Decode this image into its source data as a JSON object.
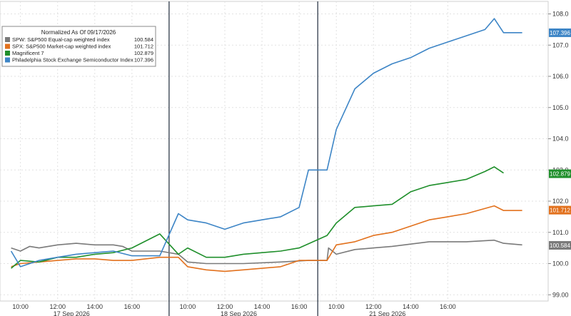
{
  "chart_data": {
    "type": "line",
    "legend": {
      "title": "Normalized As Of 09/17/2026",
      "placement": "top-left"
    },
    "y_axis": {
      "position": "right",
      "ylim": [
        98.8,
        108.4
      ],
      "ticks": [
        "99.00",
        "100.0",
        "101.0",
        "102.0",
        "103.0",
        "104.0",
        "105.0",
        "106.0",
        "107.0",
        "108.0"
      ]
    },
    "x_axis": {
      "sessions": [
        {
          "date_label": "17 Sep 2026",
          "ticks": [
            "10:00",
            "12:00",
            "14:00",
            "16:00"
          ]
        },
        {
          "date_label": "18 Sep 2026",
          "ticks": [
            "10:00",
            "12:00",
            "14:00",
            "16:00"
          ]
        },
        {
          "date_label": "21 Sep 2026",
          "ticks": [
            "10:00",
            "12:00",
            "14:00",
            "16:00"
          ]
        }
      ]
    },
    "grid": true,
    "series": [
      {
        "name": "SPW: S&P500 Equal-cap weighted index",
        "last_value": "100.584",
        "color": "#7a7a7a",
        "points": [
          [
            9.5,
            100.5
          ],
          [
            10.0,
            100.4
          ],
          [
            10.5,
            100.55
          ],
          [
            11.0,
            100.5
          ],
          [
            12.0,
            100.6
          ],
          [
            13.0,
            100.65
          ],
          [
            14.0,
            100.6
          ],
          [
            15.0,
            100.6
          ],
          [
            15.5,
            100.55
          ],
          [
            16.0,
            100.4
          ],
          [
            17.5,
            100.4
          ],
          [
            18.5,
            100.3
          ],
          [
            19.0,
            100.05
          ],
          [
            20.0,
            100.0
          ],
          [
            22.0,
            100.0
          ],
          [
            24.0,
            100.05
          ],
          [
            25.5,
            100.1
          ],
          [
            26.5,
            100.1
          ],
          [
            26.58,
            100.5
          ],
          [
            27.0,
            100.3
          ],
          [
            28.0,
            100.45
          ],
          [
            29.0,
            100.5
          ],
          [
            30.0,
            100.55
          ],
          [
            32.0,
            100.7
          ],
          [
            34.0,
            100.7
          ],
          [
            35.5,
            100.75
          ],
          [
            36.0,
            100.65
          ],
          [
            37.0,
            100.6
          ]
        ]
      },
      {
        "name": "SPX: S&P500 Market-cap weighted index",
        "last_value": "101.712",
        "color": "#e2711d",
        "points": [
          [
            9.5,
            99.9
          ],
          [
            10.0,
            100.0
          ],
          [
            11.0,
            100.05
          ],
          [
            12.0,
            100.1
          ],
          [
            13.0,
            100.15
          ],
          [
            14.0,
            100.15
          ],
          [
            15.0,
            100.1
          ],
          [
            16.0,
            100.1
          ],
          [
            17.5,
            100.2
          ],
          [
            18.5,
            100.2
          ],
          [
            19.0,
            99.9
          ],
          [
            20.0,
            99.8
          ],
          [
            21.0,
            99.75
          ],
          [
            22.0,
            99.8
          ],
          [
            24.0,
            99.9
          ],
          [
            25.0,
            100.1
          ],
          [
            26.5,
            100.1
          ],
          [
            27.0,
            100.6
          ],
          [
            28.0,
            100.7
          ],
          [
            29.0,
            100.9
          ],
          [
            30.0,
            101.0
          ],
          [
            32.0,
            101.4
          ],
          [
            33.0,
            101.5
          ],
          [
            34.0,
            101.6
          ],
          [
            35.5,
            101.85
          ],
          [
            36.0,
            101.7
          ],
          [
            37.0,
            101.7
          ]
        ]
      },
      {
        "name": "Magnificent 7",
        "last_value": "102.879",
        "color": "#1f8f2b",
        "points": [
          [
            9.5,
            99.85
          ],
          [
            10.0,
            100.1
          ],
          [
            11.0,
            100.05
          ],
          [
            12.0,
            100.2
          ],
          [
            13.0,
            100.2
          ],
          [
            14.0,
            100.3
          ],
          [
            15.0,
            100.35
          ],
          [
            16.0,
            100.5
          ],
          [
            17.5,
            100.95
          ],
          [
            18.5,
            100.3
          ],
          [
            19.0,
            100.5
          ],
          [
            20.0,
            100.2
          ],
          [
            21.0,
            100.2
          ],
          [
            22.0,
            100.3
          ],
          [
            24.0,
            100.4
          ],
          [
            25.0,
            100.5
          ],
          [
            26.5,
            100.9
          ],
          [
            27.0,
            101.3
          ],
          [
            28.0,
            101.8
          ],
          [
            29.0,
            101.85
          ],
          [
            30.0,
            101.9
          ],
          [
            31.0,
            102.3
          ],
          [
            32.0,
            102.5
          ],
          [
            33.0,
            102.6
          ],
          [
            34.0,
            102.7
          ],
          [
            35.0,
            102.95
          ],
          [
            35.5,
            103.1
          ],
          [
            36.0,
            102.9
          ]
        ]
      },
      {
        "name": "Philadelphia Stock Exchange Semiconductor Index",
        "last_value": "107.396",
        "color": "#3d85c6",
        "points": [
          [
            9.5,
            100.4
          ],
          [
            10.0,
            99.9
          ],
          [
            11.0,
            100.1
          ],
          [
            12.0,
            100.2
          ],
          [
            13.0,
            100.3
          ],
          [
            14.0,
            100.35
          ],
          [
            15.0,
            100.4
          ],
          [
            16.0,
            100.25
          ],
          [
            17.5,
            100.25
          ],
          [
            18.5,
            101.6
          ],
          [
            19.0,
            101.4
          ],
          [
            20.0,
            101.3
          ],
          [
            21.0,
            101.1
          ],
          [
            22.0,
            101.3
          ],
          [
            23.0,
            101.4
          ],
          [
            24.0,
            101.5
          ],
          [
            25.0,
            101.8
          ],
          [
            25.5,
            103.0
          ],
          [
            26.5,
            103.0
          ],
          [
            27.0,
            104.3
          ],
          [
            28.0,
            105.6
          ],
          [
            29.0,
            106.1
          ],
          [
            30.0,
            106.4
          ],
          [
            31.0,
            106.6
          ],
          [
            32.0,
            106.9
          ],
          [
            33.0,
            107.1
          ],
          [
            34.0,
            107.3
          ],
          [
            35.0,
            107.5
          ],
          [
            35.5,
            107.85
          ],
          [
            36.0,
            107.4
          ],
          [
            37.0,
            107.4
          ]
        ]
      }
    ]
  }
}
